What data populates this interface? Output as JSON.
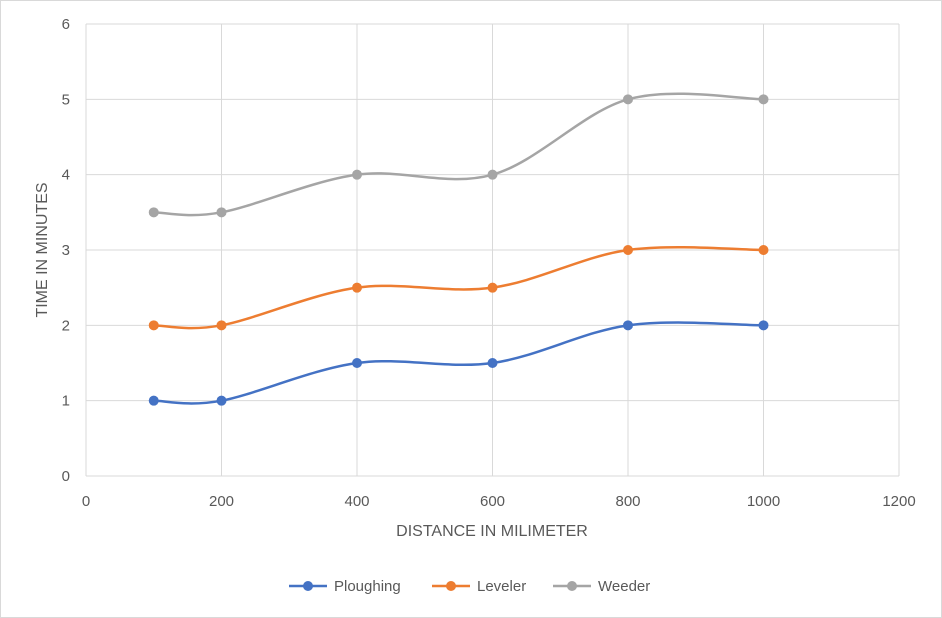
{
  "chart_data": {
    "type": "line",
    "title": "",
    "xlabel": "DISTANCE IN MILIMETER",
    "ylabel": "TIME IN MINUTES",
    "xlim": [
      0,
      1200
    ],
    "ylim": [
      0,
      6
    ],
    "x_ticks": [
      0,
      200,
      400,
      600,
      800,
      1000,
      1200
    ],
    "y_ticks": [
      0,
      1,
      2,
      3,
      4,
      5,
      6
    ],
    "grid": true,
    "smooth": true,
    "legend_position": "bottom",
    "x": [
      100,
      200,
      400,
      600,
      800,
      1000
    ],
    "series": [
      {
        "name": "Ploughing",
        "color": "#4472c4",
        "values": [
          1,
          1,
          1.5,
          1.5,
          2,
          2
        ]
      },
      {
        "name": "Leveler",
        "color": "#ed7d31",
        "values": [
          2,
          2,
          2.5,
          2.5,
          3,
          3
        ]
      },
      {
        "name": "Weeder",
        "color": "#a5a5a5",
        "values": [
          3.5,
          3.5,
          4,
          4,
          5,
          5
        ]
      }
    ]
  }
}
